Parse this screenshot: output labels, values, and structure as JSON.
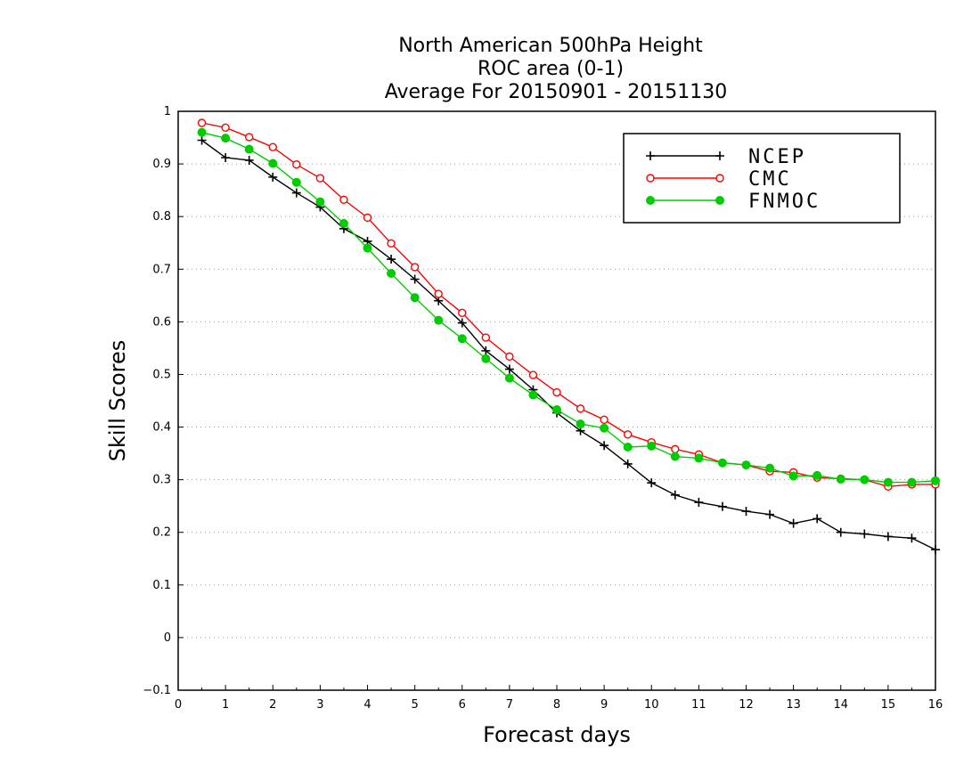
{
  "chart_data": {
    "type": "line",
    "title_lines": [
      "North American 500hPa Height",
      "ROC area (0-1)",
      "Average For 20150901 - 20151130"
    ],
    "xlabel": "Forecast days",
    "ylabel": "Skill Scores",
    "xlim": [
      0,
      16
    ],
    "ylim": [
      -0.1,
      1
    ],
    "x_ticks": [
      "0",
      "1",
      "2",
      "3",
      "4",
      "5",
      "6",
      "7",
      "8",
      "9",
      "10",
      "11",
      "12",
      "13",
      "14",
      "15",
      "16"
    ],
    "y_ticks": [
      "−0.1",
      "0",
      "0.1",
      "0.2",
      "0.3",
      "0.4",
      "0.5",
      "0.6",
      "0.7",
      "0.8",
      "0.9",
      "1"
    ],
    "y_tick_values": [
      -0.1,
      0,
      0.1,
      0.2,
      0.3,
      0.4,
      0.5,
      0.6,
      0.7,
      0.8,
      0.9,
      1.0
    ],
    "grid": "horizontal dotted",
    "legend_position": "top-right",
    "x": [
      0.5,
      1,
      1.5,
      2,
      2.5,
      3,
      3.5,
      4,
      4.5,
      5,
      5.5,
      6,
      6.5,
      7,
      7.5,
      8,
      8.5,
      9,
      9.5,
      10,
      10.5,
      11,
      11.5,
      12,
      12.5,
      13,
      13.5,
      14,
      14.5,
      15,
      15.5,
      16
    ],
    "series": [
      {
        "name": "NCEP",
        "color": "#000000",
        "marker": "plus",
        "values": [
          0.945,
          0.912,
          0.907,
          0.875,
          0.845,
          0.818,
          0.777,
          0.753,
          0.719,
          0.681,
          0.64,
          0.598,
          0.545,
          0.51,
          0.471,
          0.427,
          0.393,
          0.365,
          0.33,
          0.294,
          0.271,
          0.257,
          0.249,
          0.24,
          0.234,
          0.217,
          0.226,
          0.2,
          0.197,
          0.192,
          0.189,
          0.167
        ]
      },
      {
        "name": "CMC",
        "color": "#ff0000",
        "marker": "open-circle",
        "values": [
          0.978,
          0.969,
          0.951,
          0.932,
          0.899,
          0.873,
          0.832,
          0.798,
          0.749,
          0.704,
          0.653,
          0.617,
          0.57,
          0.534,
          0.499,
          0.466,
          0.435,
          0.414,
          0.386,
          0.371,
          0.358,
          0.348,
          0.332,
          0.328,
          0.316,
          0.314,
          0.304,
          0.302,
          0.3,
          0.287,
          0.291,
          0.291
        ]
      },
      {
        "name": "FNMOC",
        "color": "#00cc00",
        "marker": "filled-circle",
        "values": [
          0.96,
          0.949,
          0.928,
          0.901,
          0.865,
          0.828,
          0.787,
          0.74,
          0.692,
          0.646,
          0.603,
          0.568,
          0.53,
          0.493,
          0.461,
          0.433,
          0.406,
          0.398,
          0.362,
          0.364,
          0.344,
          0.341,
          0.332,
          0.328,
          0.322,
          0.307,
          0.308,
          0.301,
          0.3,
          0.295,
          0.295,
          0.298
        ]
      }
    ]
  }
}
